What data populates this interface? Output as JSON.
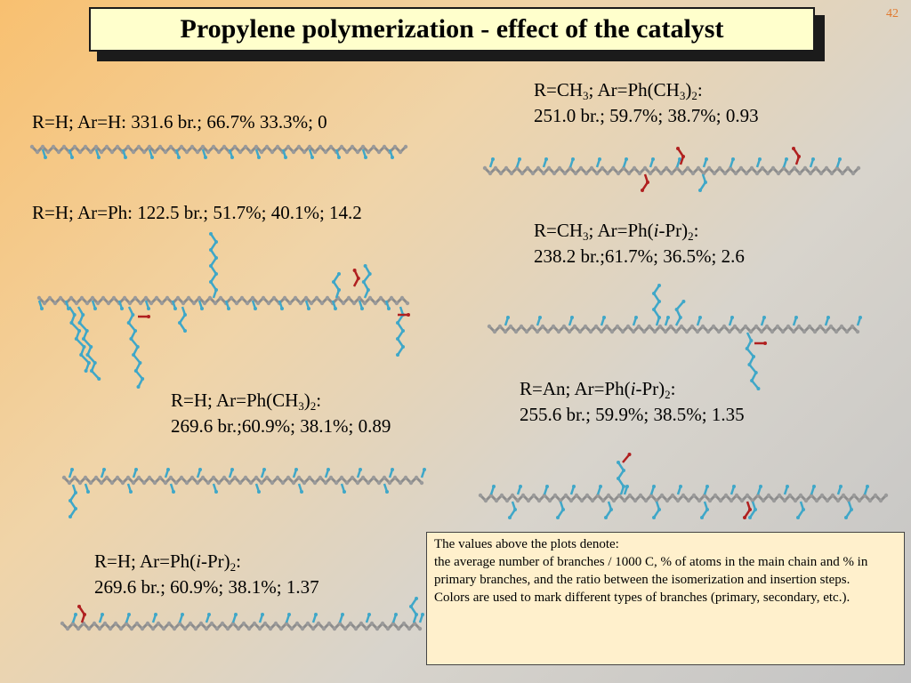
{
  "slide": {
    "title": "Propylene polymerization - effect of the catalyst",
    "number": "42"
  },
  "panels": [
    {
      "id": "h-h",
      "line1": {
        "pre": "R=H; Ar=H:  331.6 br.; 66.7%  33.3%; 0"
      }
    },
    {
      "id": "h-ph",
      "line1": {
        "pre": "R=H; Ar=Ph:  122.5 br.; 51.7%;  40.1%; 14.2"
      }
    },
    {
      "id": "h-phme2",
      "line1": {
        "pre": "R=H; Ar=Ph(CH",
        "s1": "3",
        "mid": ")",
        "s2": "2",
        "post": ":"
      },
      "line2": "269.6 br.;60.9%; 38.1%; 0.89"
    },
    {
      "id": "h-phipr2",
      "line1": {
        "pre": "R=H; Ar=Ph(",
        "ital": "i",
        "post1": "-Pr)",
        "s2": "2",
        "post2": ":"
      },
      "line2": "269.6 br.;  60.9%; 38.1%; 1.37"
    },
    {
      "id": "me-phme2",
      "line1": {
        "pre": "R=CH",
        "s1": "3",
        "mid1": "; Ar=Ph(CH",
        "s2": "3",
        "mid2": ")",
        "s3": "2",
        "post": ":"
      },
      "line2": "251.0 br.; 59.7%; 38.7%; 0.93"
    },
    {
      "id": "me-phipr2",
      "line1": {
        "pre": "R=CH",
        "s1": "3",
        "mid1": "; Ar=Ph(",
        "ital": "i",
        "mid2": "-Pr)",
        "s2": "2",
        "post": ":"
      },
      "line2": "238.2 br.;61.7%; 36.5%; 2.6"
    },
    {
      "id": "an-phipr2",
      "line1": {
        "pre": "R=An; Ar=Ph(",
        "ital": "i",
        "mid": "-Pr)",
        "s2": "2",
        "post": ":"
      },
      "line2": "255.6 br.; 59.9%; 38.5%; 1.35"
    }
  ],
  "note": {
    "line1": "The values above the plots denote:",
    "line2": "the average number of branches / 1000 C,   % of atoms in the main chain and % in primary  branches, and the ratio between the isomerization and insertion steps.",
    "line3": "Colors are used to mark different types of branches (primary, secondary, etc.)."
  },
  "colors": {
    "main_chain": "#8c8c8c",
    "primary_branch": "#3fa7c8",
    "secondary_branch": "#b02020",
    "title_box": "#ffffcc",
    "note_box": "#fff0cc",
    "slide_number": "#e07a30"
  }
}
